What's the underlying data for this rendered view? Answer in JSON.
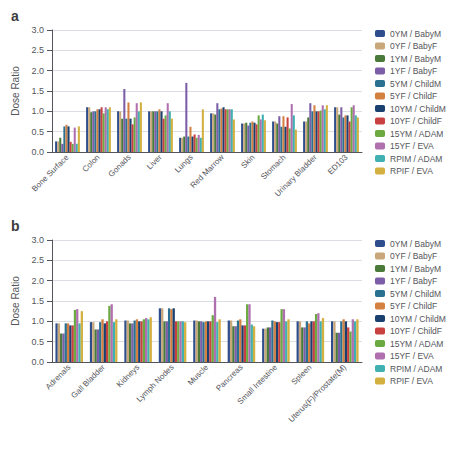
{
  "chart_data": [
    {
      "type": "bar",
      "title": "a",
      "ylabel": "Dose Ratio",
      "categories": [
        "Bone Surface",
        "Colon",
        "Gonads",
        "Liver",
        "Lungs",
        "Red Marrow",
        "Skin",
        "Stomach",
        "Urinary Bladder",
        "ED103"
      ],
      "series": [
        {
          "name": "0YM / BabyM",
          "color": "#2d4d8c",
          "values": [
            0.26,
            1.1,
            1.0,
            1.0,
            0.35,
            0.95,
            0.7,
            0.75,
            0.75,
            1.1
          ]
        },
        {
          "name": "0YF / BabyF",
          "color": "#c8a87a",
          "values": [
            0.26,
            1.1,
            1.0,
            1.0,
            0.35,
            0.95,
            0.7,
            0.75,
            0.75,
            1.1
          ]
        },
        {
          "name": "1YM / BabyM",
          "color": "#4a7a3a",
          "values": [
            0.35,
            0.98,
            0.82,
            1.0,
            0.38,
            0.92,
            0.72,
            0.7,
            0.85,
            0.92
          ]
        },
        {
          "name": "1YF / BabyF",
          "color": "#7b5ea7",
          "values": [
            0.2,
            1.0,
            1.55,
            1.0,
            1.7,
            1.2,
            0.65,
            0.88,
            1.2,
            1.1
          ]
        },
        {
          "name": "5YM / ChildM",
          "color": "#2a7090",
          "values": [
            0.63,
            1.0,
            0.82,
            1.0,
            0.38,
            1.05,
            0.72,
            0.62,
            1.0,
            0.85
          ]
        },
        {
          "name": "5YF / ChildF",
          "color": "#d48040",
          "values": [
            0.67,
            1.05,
            1.22,
            1.05,
            0.62,
            1.07,
            0.75,
            0.88,
            1.15,
            0.9
          ]
        },
        {
          "name": "10YM / ChildM",
          "color": "#1a4070",
          "values": [
            0.63,
            1.05,
            0.82,
            1.0,
            0.38,
            1.1,
            0.72,
            0.62,
            1.0,
            0.9
          ]
        },
        {
          "name": "10YF / ChildF",
          "color": "#c84040",
          "values": [
            0.25,
            1.1,
            0.68,
            0.82,
            0.43,
            1.05,
            0.68,
            0.85,
            1.0,
            0.75
          ]
        },
        {
          "name": "15YM / ADAM",
          "color": "#6aaa40",
          "values": [
            0.2,
            0.95,
            0.85,
            0.9,
            0.35,
            1.05,
            0.9,
            0.58,
            1.02,
            1.1
          ]
        },
        {
          "name": "15YF / EVA",
          "color": "#b070b0",
          "values": [
            0.6,
            1.1,
            1.2,
            1.2,
            0.42,
            1.05,
            0.8,
            1.18,
            1.15,
            1.15
          ]
        },
        {
          "name": "RPIM / ADAM",
          "color": "#40b0b0",
          "values": [
            0.2,
            1.05,
            1.0,
            1.0,
            0.35,
            1.05,
            0.92,
            0.9,
            1.05,
            0.9
          ]
        },
        {
          "name": "RPIF / EVA",
          "color": "#d4b040",
          "values": [
            0.63,
            1.1,
            1.22,
            0.82,
            1.05,
            0.8,
            0.78,
            0.55,
            1.15,
            0.85
          ]
        }
      ],
      "ylim": [
        0.0,
        3.0
      ],
      "yticks": [
        {
          "value": 0,
          "label": "0.0"
        },
        0.5,
        {
          "value": 1,
          "label": "1.0"
        },
        1.5,
        {
          "value": 2,
          "label": "2.0"
        },
        2.5,
        {
          "value": 3,
          "label": "3.0"
        }
      ],
      "grid": true,
      "legend": "right"
    },
    {
      "type": "bar",
      "title": "b",
      "ylabel": "Dose Ratio",
      "categories": [
        "Adrenals",
        "Gall Bladder",
        "Kidneys",
        "Lymph Nodes",
        "Muscle",
        "Pancreas",
        "Small Intestine",
        "Spleen",
        "Uterus(F)/Prostate(M)"
      ],
      "series": [
        {
          "name": "0YM / BabyM",
          "color": "#2d4d8c",
          "values": [
            0.95,
            0.98,
            1.02,
            1.32,
            1.02,
            1.02,
            0.82,
            1.0,
            1.0
          ]
        },
        {
          "name": "0YF / BabyF",
          "color": "#c8a87a",
          "values": [
            0.95,
            0.98,
            1.02,
            1.32,
            1.02,
            1.02,
            0.82,
            1.0,
            1.0
          ]
        },
        {
          "name": "1YM / BabyM",
          "color": "#4a7a3a",
          "values": [
            0.7,
            0.8,
            0.95,
            1.0,
            1.0,
            0.88,
            0.85,
            0.85,
            0.72
          ]
        },
        {
          "name": "1YF / BabyF",
          "color": "#7b5ea7",
          "values": [
            0.7,
            0.8,
            0.95,
            1.0,
            1.0,
            0.88,
            0.85,
            0.85,
            0.72
          ]
        },
        {
          "name": "5YM / ChildM",
          "color": "#2a7090",
          "values": [
            0.95,
            0.98,
            1.02,
            1.32,
            0.98,
            1.02,
            1.02,
            1.0,
            1.0
          ]
        },
        {
          "name": "5YF / ChildF",
          "color": "#d48040",
          "values": [
            0.95,
            1.05,
            1.05,
            1.3,
            1.0,
            1.05,
            1.0,
            0.95,
            1.05
          ]
        },
        {
          "name": "10YM / ChildM",
          "color": "#1a4070",
          "values": [
            0.9,
            0.95,
            1.0,
            1.32,
            1.0,
            0.9,
            0.98,
            1.0,
            1.0
          ]
        },
        {
          "name": "10YF / ChildF",
          "color": "#c84040",
          "values": [
            0.9,
            1.0,
            1.0,
            1.0,
            1.0,
            0.9,
            0.98,
            1.0,
            0.85
          ]
        },
        {
          "name": "15YM / ADAM",
          "color": "#6aaa40",
          "values": [
            1.28,
            1.38,
            1.05,
            1.0,
            1.15,
            1.42,
            1.3,
            1.18,
            0.75
          ]
        },
        {
          "name": "15YF / EVA",
          "color": "#b070b0",
          "values": [
            1.3,
            1.42,
            1.08,
            1.0,
            1.6,
            1.42,
            1.3,
            1.2,
            1.05
          ]
        },
        {
          "name": "RPIM / ADAM",
          "color": "#40b0b0",
          "values": [
            0.95,
            0.98,
            1.05,
            1.0,
            0.98,
            0.92,
            1.0,
            1.0,
            1.0
          ]
        },
        {
          "name": "RPIF / EVA",
          "color": "#d4b040",
          "values": [
            1.25,
            1.05,
            1.1,
            0.98,
            1.05,
            0.88,
            1.05,
            1.08,
            1.05
          ]
        }
      ],
      "ylim": [
        0.0,
        3.0
      ],
      "yticks": [
        {
          "value": 0,
          "label": "0.0"
        },
        0.5,
        {
          "value": 1,
          "label": "1.0"
        },
        1.5,
        {
          "value": 2,
          "label": "2.0"
        },
        2.5,
        {
          "value": 3,
          "label": "3.0"
        }
      ],
      "grid": true,
      "legend": "right"
    }
  ]
}
